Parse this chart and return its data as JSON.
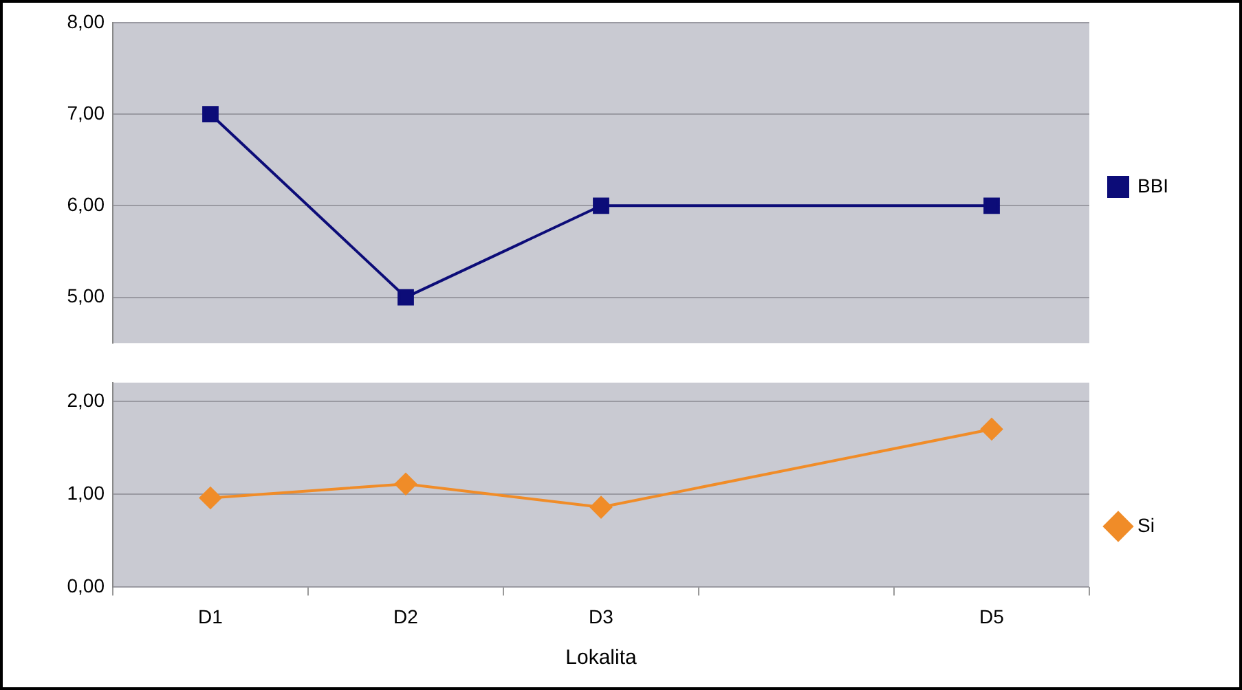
{
  "chart_data": [
    {
      "type": "line",
      "categories": [
        null,
        null,
        null,
        null,
        null
      ],
      "series": [
        {
          "name": "BBI",
          "color": "#0c0c78",
          "values": [
            7,
            5,
            6,
            null,
            6
          ]
        }
      ],
      "ylim": [
        4.5,
        8
      ],
      "yticks": [
        {
          "value": 5,
          "label": "5,00"
        },
        {
          "value": 6,
          "label": "6,00"
        },
        {
          "value": 7,
          "label": "7,00"
        },
        {
          "value": 8,
          "label": "8,00"
        }
      ],
      "grid": "y",
      "legend": "right",
      "marker": "square",
      "tick_labels": "y"
    },
    {
      "type": "line",
      "categories": [
        "D1",
        "D2",
        "D3",
        null,
        "D5"
      ],
      "series": [
        {
          "name": "Si",
          "color": "#f08c28",
          "values": [
            0.96,
            1.11,
            0.86,
            null,
            1.7
          ]
        }
      ],
      "ylim": [
        0,
        2.2
      ],
      "yticks": [
        {
          "value": 0,
          "label": "0,00"
        },
        {
          "value": 1,
          "label": "1,00"
        },
        {
          "value": 2,
          "label": "2,00"
        }
      ],
      "xlabel": "Lokalita",
      "grid": "y",
      "legend": "right",
      "marker": "diamond"
    }
  ]
}
